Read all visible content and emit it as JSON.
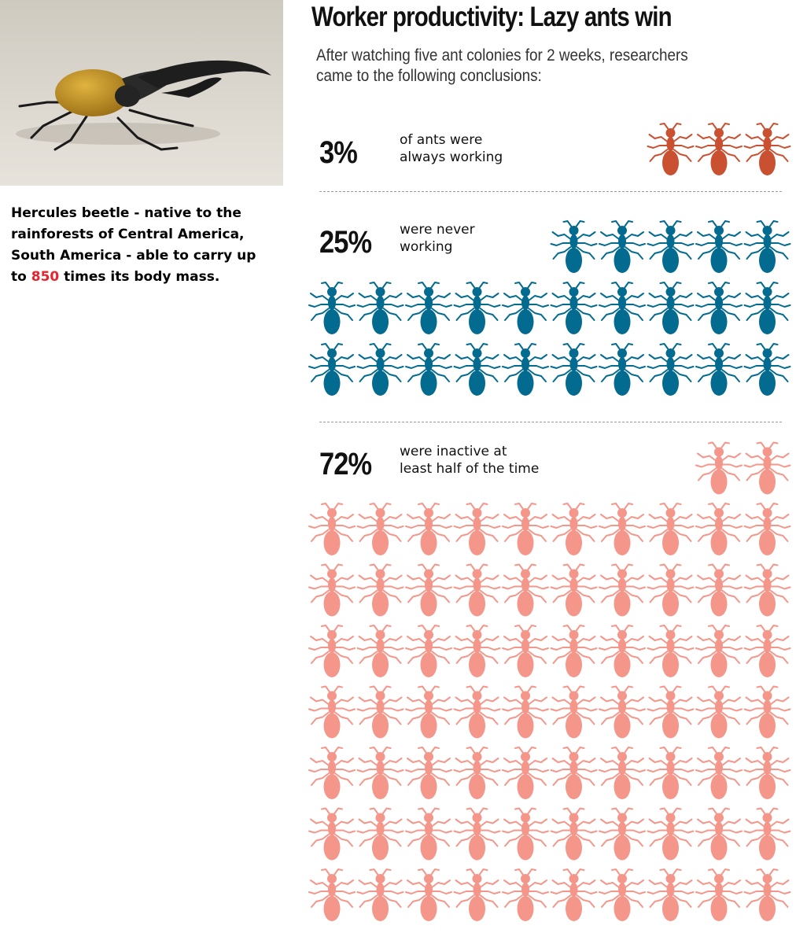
{
  "photo": {
    "subject": "hercules-beetle"
  },
  "caption": {
    "part1": "Hercules beetle - native to the rainforests of Central America, South America - able to carry up to ",
    "highlight": "850",
    "part2": " times its body mass."
  },
  "header": {
    "title": "Worker productivity: Lazy ants win",
    "subtitle": "After watching five ant colonies for 2 weeks, researchers came to the following conclusions:"
  },
  "colors": {
    "always_working": "#c95132",
    "never_working": "#036b8f",
    "inactive_half": "#f5968a",
    "caption_highlight": "#e8232d",
    "divider": "#9a9a9a"
  },
  "chart_data": {
    "type": "pictograph",
    "unit": "ant",
    "categories": [
      {
        "value_label": "3%",
        "label": "of ants were always working",
        "value": 3,
        "icon_count": 3,
        "color": "#c95132"
      },
      {
        "value_label": "25%",
        "label": "were never working",
        "value": 25,
        "icon_count": 25,
        "color": "#036b8f"
      },
      {
        "value_label": "72%",
        "label": "were inactive at least half of the time",
        "value": 72,
        "icon_count": 72,
        "color": "#f5968a"
      }
    ]
  },
  "sections": [
    {
      "pct": "3%",
      "desc_line1": "of ants were",
      "desc_line2": "always working"
    },
    {
      "pct": "25%",
      "desc_line1": "were never",
      "desc_line2": "working"
    },
    {
      "pct": "72%",
      "desc_line1": "were inactive at",
      "desc_line2": "least half of the time"
    }
  ]
}
